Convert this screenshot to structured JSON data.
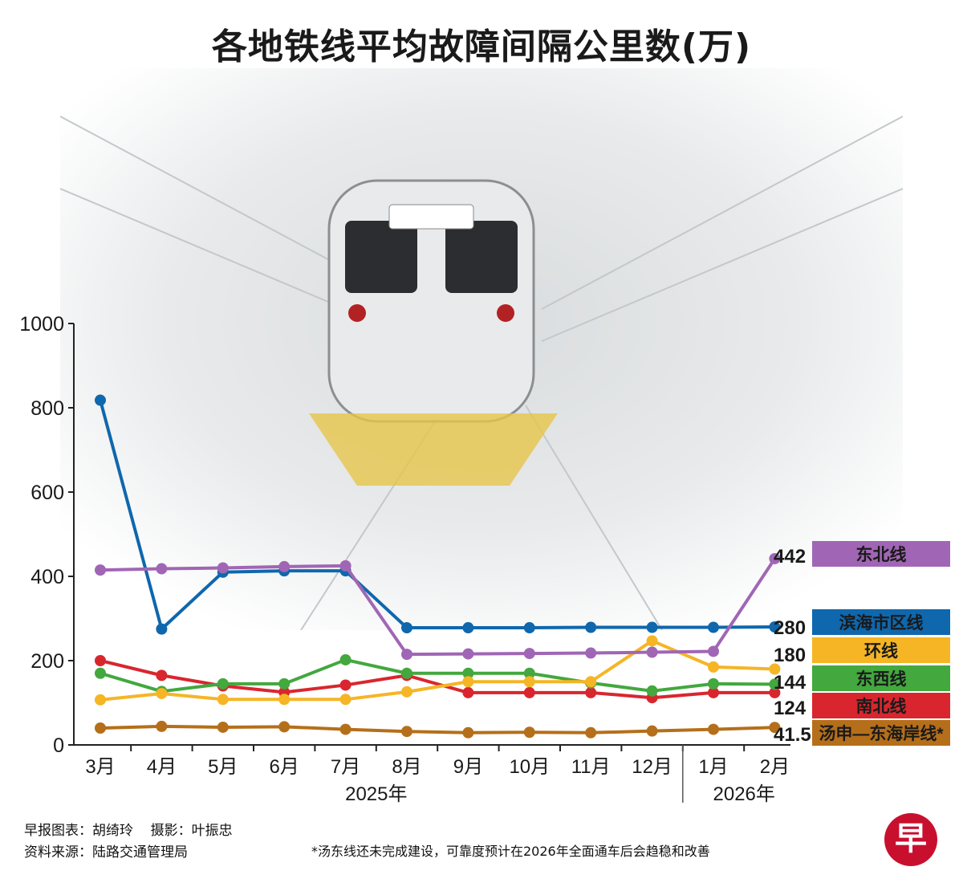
{
  "title": "各地铁线平均故障间隔公里数(万)",
  "footer": {
    "credit_chart": "早报图表：胡绮玲",
    "credit_photo": "摄影：叶振忠",
    "source": "资料来源：陆路交通管理局",
    "note": "*汤东线还未完成建设，可靠度预计在2026年全面通车后会趋稳和改善"
  },
  "logo": "早",
  "chart_data": {
    "type": "line",
    "title": "各地铁线平均故障间隔公里数(万)",
    "xlabel": "",
    "ylabel": "",
    "ylim": [
      0,
      1000
    ],
    "yticks": [
      "0",
      "200",
      "400",
      "600",
      "800",
      "1000"
    ],
    "categories": [
      "3月",
      "4月",
      "5月",
      "6月",
      "7月",
      "8月",
      "9月",
      "10月",
      "11月",
      "12月",
      "1月",
      "2月"
    ],
    "year_labels": [
      {
        "label": "2025年",
        "from": 0,
        "to": 9
      },
      {
        "label": "2026年",
        "from": 10,
        "to": 11
      }
    ],
    "grid": false,
    "legend": "right",
    "series": [
      {
        "name": "东北线",
        "color": "#a066b5",
        "end_label": "442",
        "values": [
          415,
          418,
          420,
          423,
          425,
          215,
          216,
          217,
          218,
          220,
          222,
          442
        ]
      },
      {
        "name": "滨海市区线",
        "color": "#0f67ad",
        "end_label": "280",
        "values": [
          818,
          275,
          410,
          413,
          413,
          278,
          278,
          278,
          279,
          279,
          279,
          280
        ]
      },
      {
        "name": "环线",
        "color": "#f5b525",
        "end_label": "180",
        "values": [
          107,
          122,
          108,
          108,
          108,
          126,
          150,
          150,
          150,
          247,
          185,
          180
        ]
      },
      {
        "name": "东西线",
        "color": "#43a83e",
        "end_label": "144",
        "values": [
          170,
          127,
          145,
          145,
          202,
          170,
          170,
          170,
          147,
          128,
          145,
          144
        ]
      },
      {
        "name": "南北线",
        "color": "#d9262e",
        "end_label": "124",
        "values": [
          200,
          165,
          140,
          125,
          142,
          165,
          124,
          124,
          124,
          112,
          124,
          124
        ]
      },
      {
        "name": "汤申—东海岸线*",
        "color": "#b56f1a",
        "end_label": "41.5",
        "values": [
          40,
          44,
          42,
          43,
          37,
          32,
          29,
          30,
          29,
          33,
          37,
          41.5
        ]
      }
    ]
  }
}
